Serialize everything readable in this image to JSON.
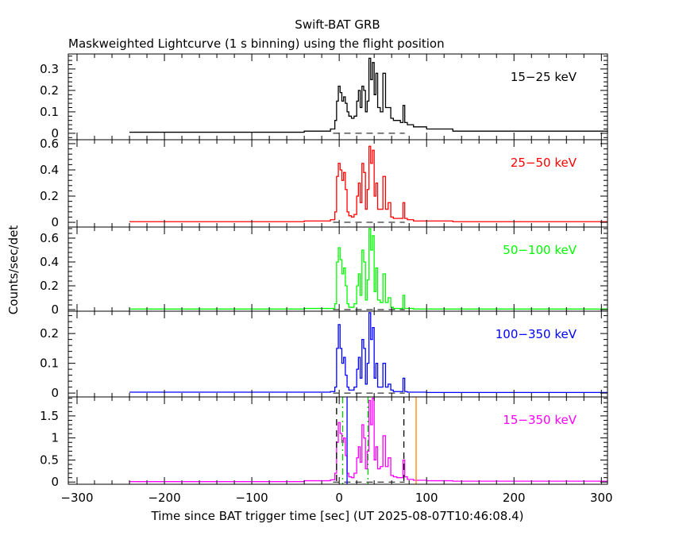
{
  "chart_data": {
    "type": "line",
    "title": "Swift-BAT GRB",
    "subtitle": "Maskweighted Lightcurve (1 s binning) using the flight position",
    "xlabel": "Time since BAT trigger time [sec] (UT 2025-08-07T10:46:08.4)",
    "ylabel": "Counts/sec/det",
    "xlim": [
      -310,
      307
    ],
    "x_ticks": [
      -300,
      -200,
      -100,
      0,
      100,
      200,
      300
    ],
    "x": [
      -240,
      -40,
      -10,
      -5,
      -3,
      -1,
      1,
      3,
      5,
      7,
      9,
      11,
      14,
      17,
      20,
      22,
      24,
      26,
      28,
      30,
      32,
      34,
      36,
      38,
      40,
      42,
      44,
      47,
      50,
      53,
      56,
      59,
      62,
      66,
      70,
      73,
      75,
      78,
      85,
      100,
      130,
      307
    ],
    "panels": [
      {
        "name": "15-25 keV",
        "color": "#000000",
        "ylim": [
          -0.03,
          0.37
        ],
        "y_ticks": [
          0,
          0.1,
          0.2,
          0.3
        ],
        "values": [
          0.005,
          0.01,
          0.02,
          0.06,
          0.15,
          0.22,
          0.19,
          0.15,
          0.17,
          0.14,
          0.1,
          0.08,
          0.07,
          0.08,
          0.15,
          0.2,
          0.12,
          0.22,
          0.2,
          0.1,
          0.15,
          0.35,
          0.25,
          0.33,
          0.18,
          0.28,
          0.12,
          0.1,
          0.28,
          0.12,
          0.12,
          0.07,
          0.06,
          0.06,
          0.05,
          0.13,
          0.05,
          0.04,
          0.03,
          0.02,
          0.01,
          0.005
        ]
      },
      {
        "name": "25-50 keV",
        "color": "#ff0000",
        "ylim": [
          -0.036,
          0.63
        ],
        "y_ticks": [
          0,
          0.2,
          0.4,
          0.6
        ],
        "values": [
          0.005,
          0.01,
          0.02,
          0.08,
          0.35,
          0.45,
          0.4,
          0.32,
          0.38,
          0.25,
          0.08,
          0.05,
          0.04,
          0.06,
          0.2,
          0.3,
          0.15,
          0.45,
          0.38,
          0.1,
          0.25,
          0.58,
          0.45,
          0.55,
          0.2,
          0.3,
          0.1,
          0.1,
          0.35,
          0.1,
          0.15,
          0.04,
          0.03,
          0.03,
          0.03,
          0.15,
          0.03,
          0.02,
          0.01,
          0.01,
          0.005,
          0.005
        ]
      },
      {
        "name": "50-100 keV",
        "color": "#00ff00",
        "ylim": [
          -0.013,
          0.693
        ],
        "y_ticks": [
          0,
          0.2,
          0.4,
          0.6
        ],
        "values": [
          0.005,
          0.01,
          0.01,
          0.05,
          0.4,
          0.52,
          0.42,
          0.3,
          0.35,
          0.2,
          0.05,
          0.02,
          0.02,
          0.05,
          0.2,
          0.3,
          0.12,
          0.5,
          0.4,
          0.08,
          0.25,
          0.68,
          0.5,
          0.62,
          0.15,
          0.35,
          0.08,
          0.06,
          0.3,
          0.06,
          0.1,
          0.02,
          0.01,
          0.01,
          0.01,
          0.12,
          0.01,
          0.01,
          0.005,
          0.005,
          0.005,
          0.005
        ]
      },
      {
        "name": "100-350 keV",
        "color": "#0000ff",
        "ylim": [
          -0.013,
          0.275
        ],
        "y_ticks": [
          0,
          0.1,
          0.2
        ],
        "values": [
          0.003,
          0.003,
          0.005,
          0.02,
          0.15,
          0.23,
          0.15,
          0.1,
          0.12,
          0.06,
          0.02,
          0.01,
          0.01,
          0.02,
          0.08,
          0.12,
          0.05,
          0.18,
          0.15,
          0.03,
          0.1,
          0.27,
          0.18,
          0.22,
          0.05,
          0.1,
          0.02,
          0.02,
          0.1,
          0.02,
          0.03,
          0.01,
          0.005,
          0.005,
          0.005,
          0.05,
          0.005,
          0.003,
          0.003,
          0.002,
          0.002,
          0.002
        ]
      },
      {
        "name": "15-350 keV",
        "color": "#ff00ff",
        "ylim": [
          -0.05,
          1.93
        ],
        "y_ticks": [
          0,
          0.5,
          1,
          1.5
        ],
        "values": [
          0.01,
          0.03,
          0.05,
          0.2,
          0.9,
          1.35,
          1.1,
          0.9,
          1.0,
          0.6,
          0.2,
          0.12,
          0.1,
          0.2,
          0.55,
          0.8,
          0.45,
          1.3,
          1.0,
          0.3,
          0.7,
          1.85,
          1.3,
          1.9,
          0.5,
          0.8,
          0.3,
          0.35,
          1.05,
          0.35,
          0.55,
          0.15,
          0.12,
          0.1,
          0.1,
          0.5,
          0.12,
          0.06,
          0.04,
          0.03,
          0.02,
          0.02
        ]
      }
    ],
    "zero_line_range": [
      -7,
      75
    ],
    "markers": [
      {
        "x": -3,
        "color": "#000000",
        "style": "dashed"
      },
      {
        "x": 74,
        "color": "#000000",
        "style": "dashed"
      },
      {
        "x": 4,
        "color": "#00cc00",
        "style": "dash-dot"
      },
      {
        "x": 33,
        "color": "#00cc00",
        "style": "dash-dot"
      },
      {
        "x": 9,
        "color": "#0000ff",
        "style": "solid"
      },
      {
        "x": 88,
        "color": "#ff8000",
        "style": "solid"
      }
    ],
    "grid": false
  }
}
